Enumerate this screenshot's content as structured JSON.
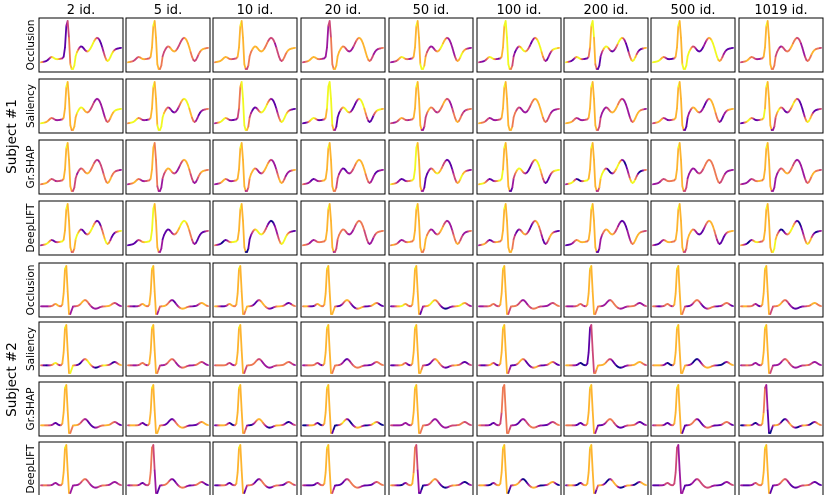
{
  "chart_data": {
    "type": "line",
    "columns": [
      "2 id.",
      "5 id.",
      "10 id.",
      "20 id.",
      "50 id.",
      "100 id.",
      "200 id.",
      "500 id.",
      "1019 id."
    ],
    "subjects": [
      {
        "label": "Subject #1",
        "rows": [
          "Occlusion",
          "Saliency",
          "Gr.SHAP",
          "DeepLIFT"
        ]
      },
      {
        "label": "Subject #2",
        "rows": [
          "Occlusion",
          "Saliency",
          "Gr.SHAP",
          "DeepLIFT"
        ]
      }
    ],
    "colormap": [
      "#0d0887",
      "#5c01a6",
      "#9c179e",
      "#cc4778",
      "#ed7953",
      "#fdb42f",
      "#f0f921"
    ],
    "colorbar_extremes": [
      "#000004",
      "#0d0887",
      "#f0f921"
    ]
  }
}
